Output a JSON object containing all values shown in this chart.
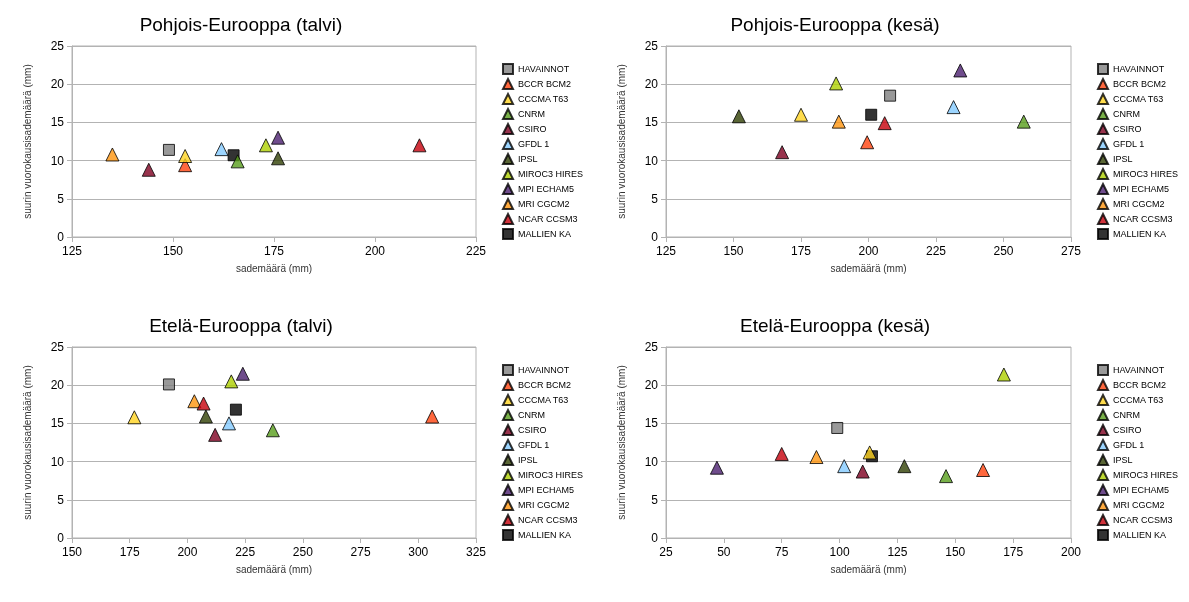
{
  "chart_data": [
    {
      "type": "scatter",
      "title": "Pohjois-Eurooppa (talvi)",
      "xlabel": "sademäärä (mm)",
      "ylabel": "suurin vuorokausisademäärä (mm)",
      "xlim": [
        125,
        225
      ],
      "xticks": [
        125,
        150,
        175,
        200,
        225
      ],
      "ylim": [
        0,
        25
      ],
      "yticks": [
        0,
        5,
        10,
        15,
        20,
        25
      ],
      "grid": "y",
      "legend": "right",
      "series": [
        {
          "name": "HAVAINNOT",
          "color": "#808080",
          "marker": "square",
          "x": [
            149
          ],
          "values": [
            11.4
          ]
        },
        {
          "name": "BCCR BCM2",
          "color": "#ff420e",
          "marker": "triangle",
          "x": [
            153
          ],
          "values": [
            9.4
          ]
        },
        {
          "name": "CCCMA T63",
          "color": "#ffd320",
          "marker": "triangle",
          "x": [
            153
          ],
          "values": [
            10.6
          ]
        },
        {
          "name": "CNRM",
          "color": "#579d1c",
          "marker": "triangle",
          "x": [
            166
          ],
          "values": [
            9.9
          ]
        },
        {
          "name": "CSIRO",
          "color": "#7e0021",
          "marker": "triangle",
          "x": [
            144
          ],
          "values": [
            8.8
          ]
        },
        {
          "name": "GFDL 1",
          "color": "#83caff",
          "marker": "triangle",
          "x": [
            162
          ],
          "values": [
            11.5
          ]
        },
        {
          "name": "IPSL",
          "color": "#314004",
          "marker": "triangle",
          "x": [
            176
          ],
          "values": [
            10.3
          ]
        },
        {
          "name": "MIROC3 HIRES",
          "color": "#aecf00",
          "marker": "triangle",
          "x": [
            173
          ],
          "values": [
            12
          ]
        },
        {
          "name": "MPI ECHAM5",
          "color": "#4b1f6f",
          "marker": "triangle",
          "x": [
            176
          ],
          "values": [
            13
          ]
        },
        {
          "name": "MRI CGCM2",
          "color": "#ff950e",
          "marker": "triangle",
          "x": [
            135
          ],
          "values": [
            10.8
          ]
        },
        {
          "name": "NCAR CCSM3",
          "color": "#c5000b",
          "marker": "triangle",
          "x": [
            211
          ],
          "values": [
            12
          ]
        },
        {
          "name": "MALLIEN KA",
          "color": "#000000",
          "marker": "square",
          "x": [
            165
          ],
          "values": [
            10.7
          ]
        }
      ]
    },
    {
      "type": "scatter",
      "title": "Pohjois-Eurooppa (kesä)",
      "xlabel": "sademäärä (mm)",
      "ylabel": "suurin vuorokausisademäärä (mm)",
      "xlim": [
        125,
        275
      ],
      "xticks": [
        125,
        150,
        175,
        200,
        225,
        250,
        275
      ],
      "ylim": [
        0,
        25
      ],
      "yticks": [
        0,
        5,
        10,
        15,
        20,
        25
      ],
      "grid": "y",
      "legend": "right",
      "series": [
        {
          "name": "HAVAINNOT",
          "color": "#808080",
          "marker": "square",
          "x": [
            208
          ],
          "values": [
            18.5
          ]
        },
        {
          "name": "BCCR BCM2",
          "color": "#ff420e",
          "marker": "triangle",
          "x": [
            199.5
          ],
          "values": [
            12.4
          ]
        },
        {
          "name": "CCCMA T63",
          "color": "#ffd320",
          "marker": "triangle",
          "x": [
            175
          ],
          "values": [
            16
          ]
        },
        {
          "name": "CNRM",
          "color": "#579d1c",
          "marker": "triangle",
          "x": [
            257.5
          ],
          "values": [
            15.1
          ]
        },
        {
          "name": "CSIRO",
          "color": "#7e0021",
          "marker": "triangle",
          "x": [
            168
          ],
          "values": [
            11.1
          ]
        },
        {
          "name": "GFDL 1",
          "color": "#83caff",
          "marker": "triangle",
          "x": [
            231.5
          ],
          "values": [
            17
          ]
        },
        {
          "name": "IPSL",
          "color": "#314004",
          "marker": "triangle",
          "x": [
            152
          ],
          "values": [
            15.8
          ]
        },
        {
          "name": "MIROC3 HIRES",
          "color": "#aecf00",
          "marker": "triangle",
          "x": [
            188
          ],
          "values": [
            20.1
          ]
        },
        {
          "name": "MPI ECHAM5",
          "color": "#4b1f6f",
          "marker": "triangle",
          "x": [
            234
          ],
          "values": [
            21.8
          ]
        },
        {
          "name": "MRI CGCM2",
          "color": "#ff950e",
          "marker": "triangle",
          "x": [
            189
          ],
          "values": [
            15.1
          ]
        },
        {
          "name": "NCAR CCSM3",
          "color": "#c5000b",
          "marker": "triangle",
          "x": [
            206
          ],
          "values": [
            14.9
          ]
        },
        {
          "name": "MALLIEN KA",
          "color": "#000000",
          "marker": "square",
          "x": [
            201
          ],
          "values": [
            16
          ]
        }
      ]
    },
    {
      "type": "scatter",
      "title": "Etelä-Eurooppa (talvi)",
      "xlabel": "sademäärä (mm)",
      "ylabel": "suurin vuorokausisademäärä (mm)",
      "xlim": [
        150,
        325
      ],
      "xticks": [
        150,
        175,
        200,
        225,
        250,
        275,
        300,
        325
      ],
      "ylim": [
        0,
        25
      ],
      "yticks": [
        0,
        5,
        10,
        15,
        20,
        25
      ],
      "grid": "y",
      "legend": "right",
      "series": [
        {
          "name": "HAVAINNOT",
          "color": "#808080",
          "marker": "square",
          "x": [
            192
          ],
          "values": [
            20.1
          ]
        },
        {
          "name": "BCCR BCM2",
          "color": "#ff420e",
          "marker": "triangle",
          "x": [
            306
          ],
          "values": [
            15.9
          ]
        },
        {
          "name": "CCCMA T63",
          "color": "#ffd320",
          "marker": "triangle",
          "x": [
            177
          ],
          "values": [
            15.8
          ]
        },
        {
          "name": "CNRM",
          "color": "#579d1c",
          "marker": "triangle",
          "x": [
            237
          ],
          "values": [
            14.1
          ]
        },
        {
          "name": "CSIRO",
          "color": "#7e0021",
          "marker": "triangle",
          "x": [
            212
          ],
          "values": [
            13.5
          ]
        },
        {
          "name": "GFDL 1",
          "color": "#83caff",
          "marker": "triangle",
          "x": [
            218
          ],
          "values": [
            15
          ]
        },
        {
          "name": "IPSL",
          "color": "#314004",
          "marker": "triangle",
          "x": [
            208
          ],
          "values": [
            15.9
          ]
        },
        {
          "name": "MIROC3 HIRES",
          "color": "#aecf00",
          "marker": "triangle",
          "x": [
            219
          ],
          "values": [
            20.5
          ]
        },
        {
          "name": "MPI ECHAM5",
          "color": "#4b1f6f",
          "marker": "triangle",
          "x": [
            224
          ],
          "values": [
            21.5
          ]
        },
        {
          "name": "MRI CGCM2",
          "color": "#ff950e",
          "marker": "triangle",
          "x": [
            203
          ],
          "values": [
            17.9
          ]
        },
        {
          "name": "NCAR CCSM3",
          "color": "#c5000b",
          "marker": "triangle",
          "x": [
            207
          ],
          "values": [
            17.6
          ]
        },
        {
          "name": "MALLIEN KA",
          "color": "#000000",
          "marker": "square",
          "x": [
            221
          ],
          "values": [
            16.8
          ]
        }
      ]
    },
    {
      "type": "scatter",
      "title": "Etelä-Eurooppa (kesä)",
      "xlabel": "sademäärä (mm)",
      "ylabel": "suurin vuorokausisademäärä (mm)",
      "xlim": [
        25,
        200
      ],
      "xticks": [
        25,
        50,
        75,
        100,
        125,
        150,
        175,
        200
      ],
      "ylim": [
        0,
        25
      ],
      "yticks": [
        0,
        5,
        10,
        15,
        20,
        25
      ],
      "grid": "y",
      "legend": "right",
      "series": [
        {
          "name": "HAVAINNOT",
          "color": "#808080",
          "marker": "square",
          "x": [
            99
          ],
          "values": [
            14.4
          ]
        },
        {
          "name": "BCCR BCM2",
          "color": "#ff420e",
          "marker": "triangle",
          "x": [
            162
          ],
          "values": [
            8.9
          ]
        },
        {
          "name": "CCCMA T63",
          "color": "#ffd320",
          "marker": "triangle",
          "x": [
            113
          ],
          "values": [
            11.2
          ]
        },
        {
          "name": "CNRM",
          "color": "#579d1c",
          "marker": "triangle",
          "x": [
            146
          ],
          "values": [
            8.1
          ]
        },
        {
          "name": "CSIRO",
          "color": "#7e0021",
          "marker": "triangle",
          "x": [
            110
          ],
          "values": [
            8.7
          ]
        },
        {
          "name": "GFDL 1",
          "color": "#83caff",
          "marker": "triangle",
          "x": [
            102
          ],
          "values": [
            9.4
          ]
        },
        {
          "name": "IPSL",
          "color": "#314004",
          "marker": "triangle",
          "x": [
            128
          ],
          "values": [
            9.4
          ]
        },
        {
          "name": "MIROC3 HIRES",
          "color": "#aecf00",
          "marker": "triangle",
          "x": [
            171
          ],
          "values": [
            21.4
          ]
        },
        {
          "name": "MPI ECHAM5",
          "color": "#4b1f6f",
          "marker": "triangle",
          "x": [
            47
          ],
          "values": [
            9.2
          ]
        },
        {
          "name": "MRI CGCM2",
          "color": "#ff950e",
          "marker": "triangle",
          "x": [
            90
          ],
          "values": [
            10.6
          ]
        },
        {
          "name": "NCAR CCSM3",
          "color": "#c5000b",
          "marker": "triangle",
          "x": [
            75
          ],
          "values": [
            11
          ]
        },
        {
          "name": "MALLIEN KA",
          "color": "#000000",
          "marker": "square",
          "x": [
            114
          ],
          "values": [
            10.7
          ]
        }
      ]
    }
  ]
}
